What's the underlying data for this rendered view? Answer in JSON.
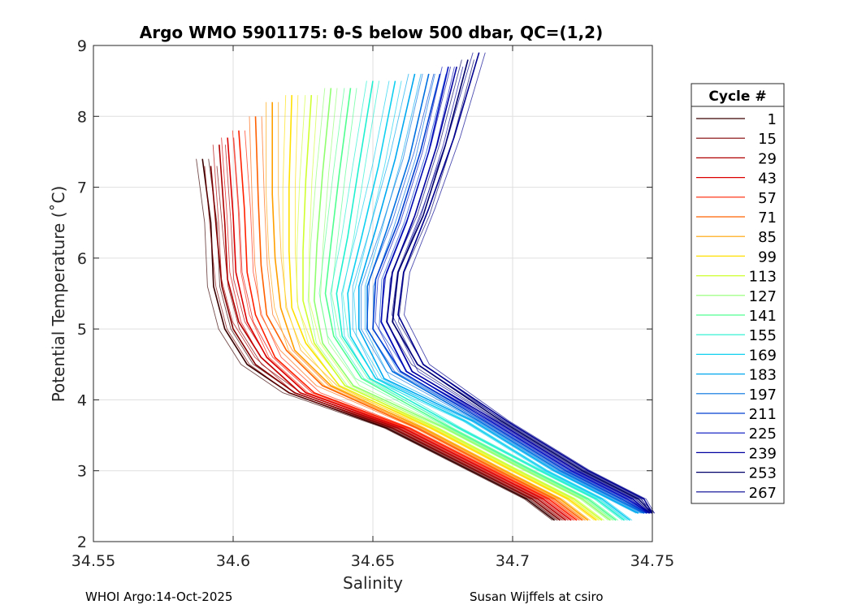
{
  "chart_data": {
    "type": "line",
    "title": "Argo WMO 5901175: θ-S below 500 dbar,  QC=(1,2)",
    "xlabel": "Salinity",
    "ylabel": "Potential Temperature (˚C)",
    "xlim": [
      34.55,
      34.75
    ],
    "ylim": [
      2,
      9
    ],
    "xticks": [
      "34.55",
      "34.6",
      "34.65",
      "34.7",
      "34.75"
    ],
    "yticks": [
      "2",
      "3",
      "4",
      "5",
      "6",
      "7",
      "8",
      "9"
    ],
    "grid": true,
    "legend_title": "Cycle #",
    "legend_position": "right",
    "series": [
      {
        "name": "1",
        "color": "#3a0000",
        "theta": [
          7.4,
          6.5,
          5.6,
          5.0,
          4.5,
          4.1,
          3.6,
          3.0,
          2.6,
          2.3
        ],
        "salinity": [
          34.589,
          34.592,
          34.593,
          34.597,
          34.605,
          34.62,
          34.655,
          34.685,
          34.705,
          34.715
        ]
      },
      {
        "name": "15",
        "color": "#800000",
        "theta": [
          7.3,
          6.4,
          5.6,
          5.0,
          4.5,
          4.1,
          3.6,
          3.0,
          2.6,
          2.3
        ],
        "salinity": [
          34.592,
          34.594,
          34.596,
          34.6,
          34.608,
          34.622,
          34.657,
          34.687,
          34.707,
          34.717
        ]
      },
      {
        "name": "29",
        "color": "#b00000",
        "theta": [
          7.6,
          6.5,
          5.7,
          5.1,
          4.6,
          4.1,
          3.6,
          3.0,
          2.6,
          2.3
        ],
        "salinity": [
          34.595,
          34.597,
          34.598,
          34.602,
          34.61,
          34.624,
          34.659,
          34.689,
          34.709,
          34.719
        ]
      },
      {
        "name": "43",
        "color": "#dd0000",
        "theta": [
          7.7,
          6.6,
          5.8,
          5.1,
          4.6,
          4.1,
          3.6,
          3.0,
          2.6,
          2.3
        ],
        "salinity": [
          34.598,
          34.6,
          34.601,
          34.605,
          34.612,
          34.626,
          34.661,
          34.691,
          34.711,
          34.721
        ]
      },
      {
        "name": "57",
        "color": "#ff2000",
        "theta": [
          7.8,
          6.7,
          5.8,
          5.2,
          4.6,
          4.1,
          3.6,
          3.0,
          2.6,
          2.3
        ],
        "salinity": [
          34.602,
          34.604,
          34.605,
          34.608,
          34.615,
          34.629,
          34.663,
          34.693,
          34.713,
          34.723
        ]
      },
      {
        "name": "71",
        "color": "#ff6000",
        "theta": [
          8.0,
          6.8,
          5.9,
          5.2,
          4.7,
          4.2,
          3.6,
          3.0,
          2.6,
          2.3
        ],
        "salinity": [
          34.608,
          34.609,
          34.61,
          34.612,
          34.619,
          34.632,
          34.666,
          34.695,
          34.715,
          34.725
        ]
      },
      {
        "name": "85",
        "color": "#ffa000",
        "theta": [
          8.2,
          6.9,
          6.0,
          5.3,
          4.7,
          4.2,
          3.6,
          3.0,
          2.6,
          2.3
        ],
        "salinity": [
          34.614,
          34.614,
          34.615,
          34.617,
          34.622,
          34.635,
          34.668,
          34.697,
          34.717,
          34.727
        ]
      },
      {
        "name": "99",
        "color": "#ffe000",
        "theta": [
          8.3,
          7.0,
          6.1,
          5.3,
          4.8,
          4.2,
          3.6,
          3.0,
          2.6,
          2.3
        ],
        "salinity": [
          34.621,
          34.62,
          34.62,
          34.621,
          34.626,
          34.638,
          34.671,
          34.7,
          34.72,
          34.73
        ]
      },
      {
        "name": "113",
        "color": "#d0ff30",
        "theta": [
          8.3,
          7.1,
          6.1,
          5.4,
          4.8,
          4.2,
          3.6,
          3.0,
          2.6,
          2.3
        ],
        "salinity": [
          34.628,
          34.626,
          34.625,
          34.625,
          34.629,
          34.64,
          34.673,
          34.702,
          34.722,
          34.732
        ]
      },
      {
        "name": "127",
        "color": "#90ff70",
        "theta": [
          8.4,
          7.2,
          6.2,
          5.4,
          4.8,
          4.2,
          3.6,
          3.0,
          2.6,
          2.3
        ],
        "salinity": [
          34.635,
          34.632,
          34.63,
          34.629,
          34.632,
          34.643,
          34.676,
          34.705,
          34.725,
          34.735
        ]
      },
      {
        "name": "141",
        "color": "#50ff90",
        "theta": [
          8.4,
          7.2,
          6.2,
          5.5,
          4.9,
          4.3,
          3.6,
          3.0,
          2.6,
          2.3
        ],
        "salinity": [
          34.642,
          34.638,
          34.635,
          34.633,
          34.636,
          34.646,
          34.678,
          34.707,
          34.727,
          34.737
        ]
      },
      {
        "name": "155",
        "color": "#20f0d0",
        "theta": [
          8.5,
          7.3,
          6.3,
          5.5,
          4.9,
          4.3,
          3.6,
          3.0,
          2.6,
          2.3
        ],
        "salinity": [
          34.65,
          34.645,
          34.641,
          34.637,
          34.639,
          34.649,
          34.681,
          34.71,
          34.73,
          34.74
        ]
      },
      {
        "name": "169",
        "color": "#10d0f0",
        "theta": [
          8.5,
          7.3,
          6.3,
          5.5,
          4.9,
          4.3,
          3.7,
          3.0,
          2.6,
          2.3
        ],
        "salinity": [
          34.658,
          34.652,
          34.646,
          34.641,
          34.642,
          34.651,
          34.683,
          34.712,
          34.732,
          34.742
        ]
      },
      {
        "name": "183",
        "color": "#00a8f0",
        "theta": [
          8.6,
          7.4,
          6.4,
          5.6,
          5.0,
          4.3,
          3.7,
          3.0,
          2.6,
          2.4
        ],
        "salinity": [
          34.665,
          34.658,
          34.651,
          34.645,
          34.645,
          34.654,
          34.686,
          34.715,
          34.735,
          34.745
        ]
      },
      {
        "name": "197",
        "color": "#0070e0",
        "theta": [
          8.6,
          7.4,
          6.4,
          5.6,
          5.0,
          4.4,
          3.7,
          3.0,
          2.6,
          2.4
        ],
        "salinity": [
          34.67,
          34.663,
          34.655,
          34.648,
          34.648,
          34.657,
          34.688,
          34.717,
          34.737,
          34.747
        ]
      },
      {
        "name": "211",
        "color": "#0040d0",
        "theta": [
          8.6,
          7.5,
          6.5,
          5.7,
          5.0,
          4.4,
          3.7,
          3.0,
          2.6,
          2.4
        ],
        "salinity": [
          34.674,
          34.667,
          34.659,
          34.651,
          34.65,
          34.66,
          34.69,
          34.719,
          34.739,
          34.748
        ]
      },
      {
        "name": "225",
        "color": "#0010c0",
        "theta": [
          8.7,
          7.5,
          6.5,
          5.7,
          5.1,
          4.4,
          3.7,
          3.0,
          2.6,
          2.4
        ],
        "salinity": [
          34.677,
          34.67,
          34.662,
          34.654,
          34.653,
          34.662,
          34.692,
          34.721,
          34.741,
          34.749
        ]
      },
      {
        "name": "239",
        "color": "#0000a0",
        "theta": [
          8.7,
          7.6,
          6.6,
          5.8,
          5.1,
          4.4,
          3.7,
          3.0,
          2.6,
          2.4
        ],
        "salinity": [
          34.68,
          34.673,
          34.665,
          34.657,
          34.655,
          34.664,
          34.694,
          34.723,
          34.743,
          34.749
        ]
      },
      {
        "name": "253",
        "color": "#00006a",
        "theta": [
          8.8,
          7.6,
          6.6,
          5.8,
          5.1,
          4.5,
          3.7,
          3.0,
          2.6,
          2.4
        ],
        "salinity": [
          34.684,
          34.676,
          34.668,
          34.659,
          34.657,
          34.666,
          34.696,
          34.725,
          34.745,
          34.75
        ]
      },
      {
        "name": "267",
        "color": "#000090",
        "theta": [
          8.9,
          7.7,
          6.7,
          5.8,
          5.2,
          4.5,
          3.7,
          3.0,
          2.6,
          2.4
        ],
        "salinity": [
          34.688,
          34.679,
          34.67,
          34.661,
          34.659,
          34.668,
          34.698,
          34.727,
          34.747,
          34.75
        ]
      }
    ]
  },
  "footer": {
    "left": "WHOI Argo:14-Oct-2025",
    "right": "Susan Wijffels at csiro"
  }
}
